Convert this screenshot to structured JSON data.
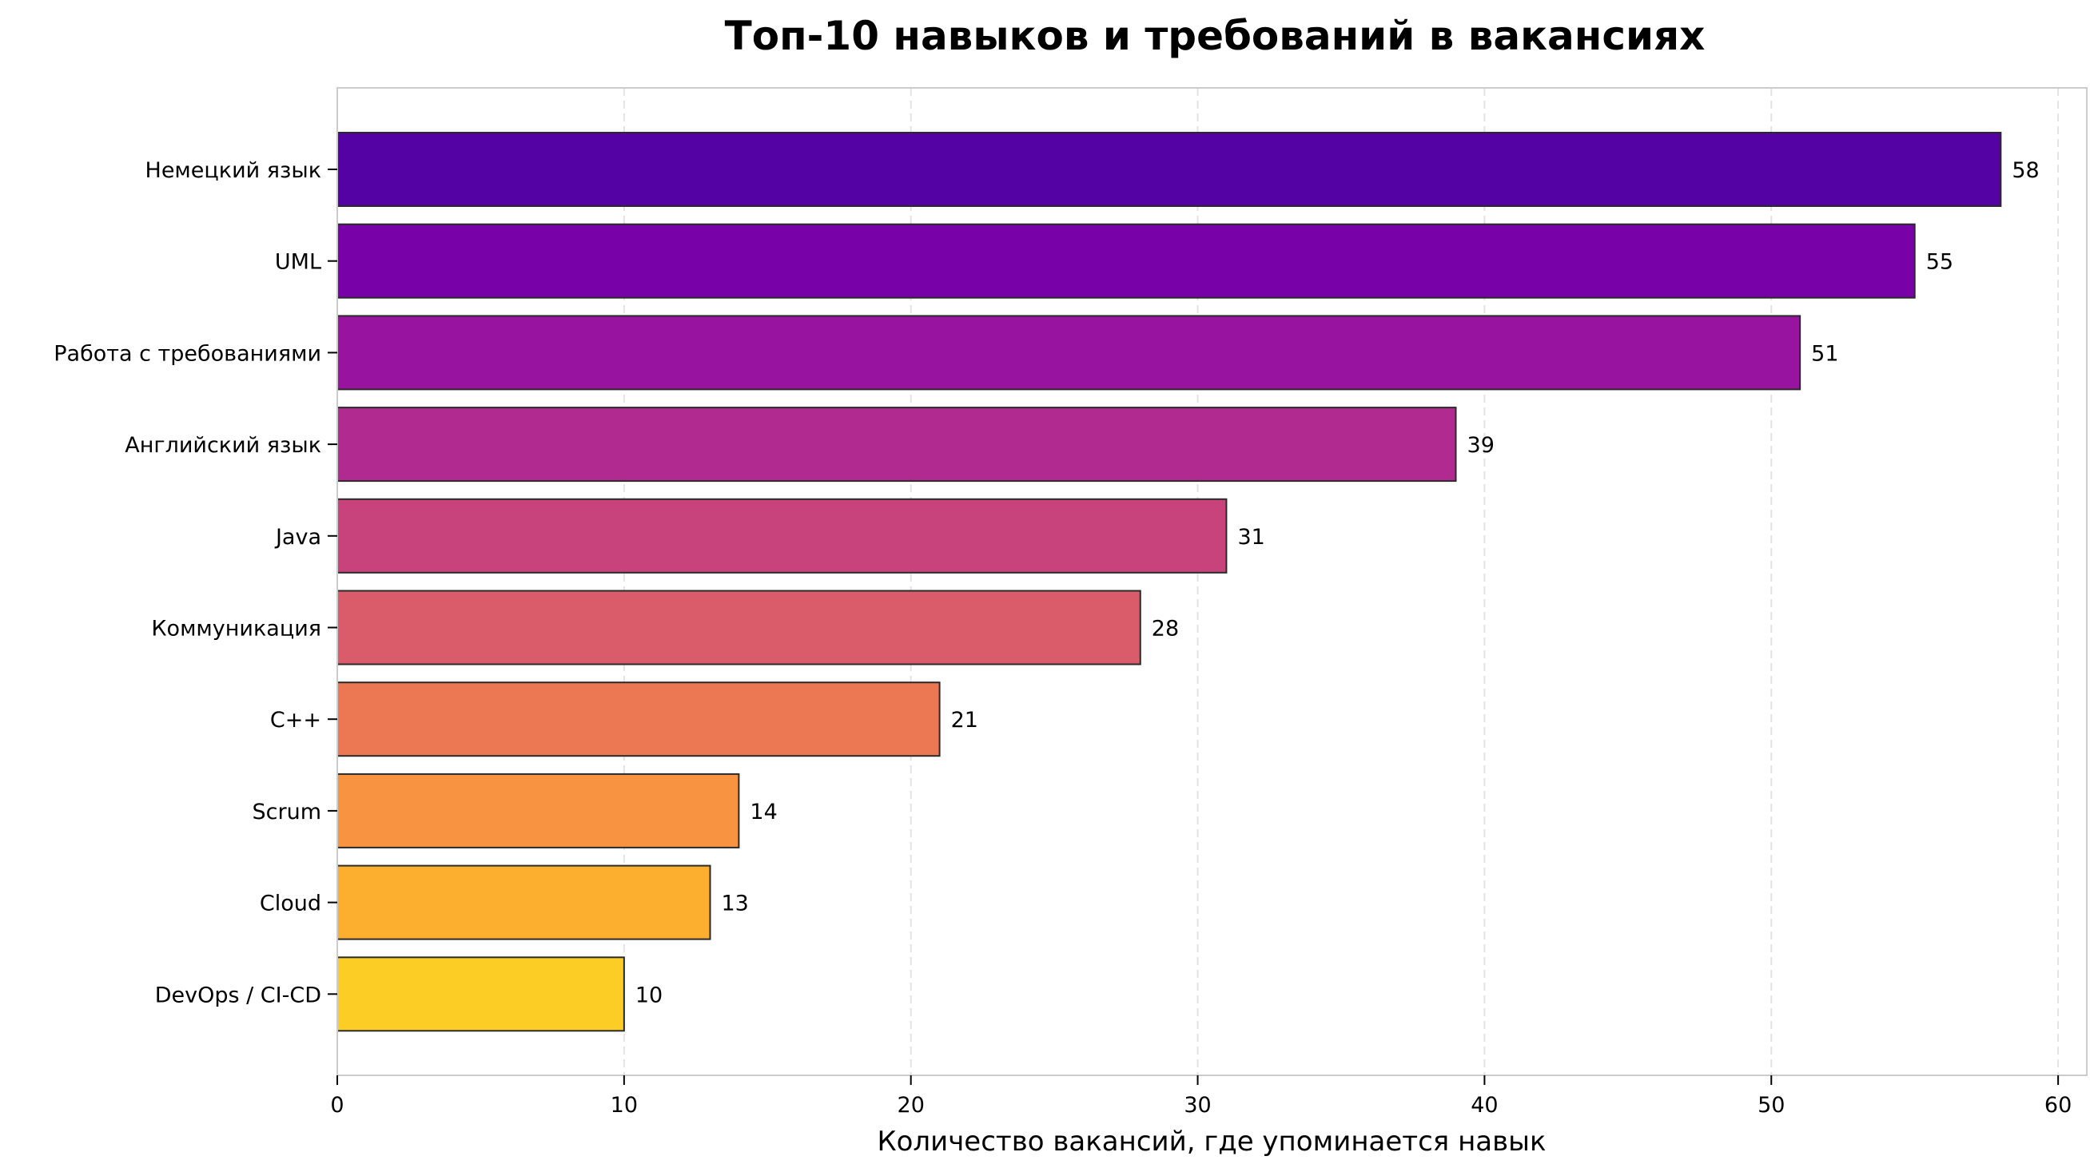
{
  "chart_data": {
    "type": "bar",
    "orientation": "horizontal",
    "title": "Топ-10 навыков и требований в вакансиях",
    "xlabel": "Количество вакансий, где упоминается навык",
    "ylabel": "",
    "categories": [
      "Немецкий язык",
      "UML",
      "Работа с требованиями",
      "Английский язык",
      "Java",
      "Коммуникация",
      "C++",
      "Scrum",
      "Cloud",
      "DevOps / CI-CD"
    ],
    "values": [
      58,
      55,
      51,
      39,
      31,
      28,
      21,
      14,
      13,
      10
    ],
    "data_labels": [
      "58",
      "55",
      "51",
      "39",
      "31",
      "28",
      "21",
      "14",
      "13",
      "10"
    ],
    "colors": [
      "#5502a4",
      "#7801a8",
      "#9814a0",
      "#b12a90",
      "#c8437b",
      "#da5b69",
      "#ec7853",
      "#f89441",
      "#fcae2f",
      "#fcce25"
    ],
    "xlim": [
      0,
      61
    ],
    "xticks": [
      0,
      10,
      20,
      30,
      40,
      50,
      60
    ],
    "xtick_labels": [
      "0",
      "10",
      "20",
      "30",
      "40",
      "50",
      "60"
    ],
    "grid": "x, dashed",
    "legend": "none"
  }
}
